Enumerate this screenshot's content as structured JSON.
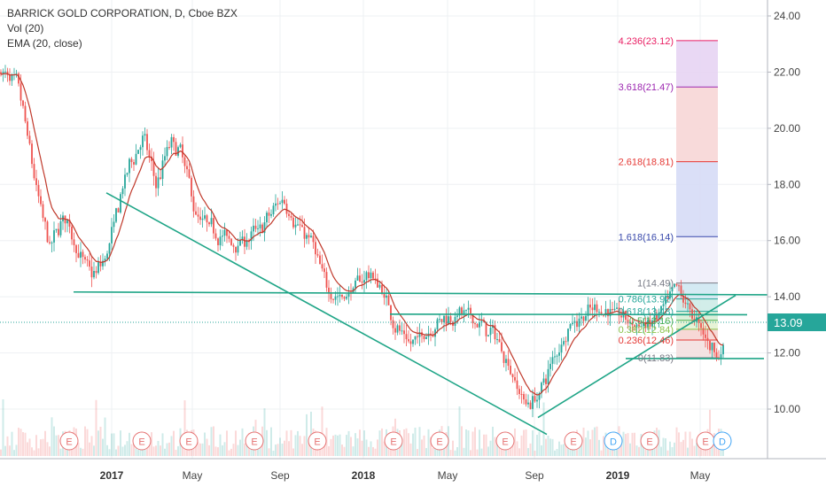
{
  "chart_data": {
    "type": "candlestick",
    "title": "BARRICK GOLD CORPORATION, D, Cboe BZX",
    "indicators": [
      "Vol (20)",
      "EMA (20, close)"
    ],
    "y_ticks": [
      "24.00",
      "22.00",
      "20.00",
      "18.00",
      "16.00",
      "14.00",
      "12.00",
      "10.00"
    ],
    "x_ticks": [
      {
        "label": "2017",
        "bold": true
      },
      {
        "label": "May",
        "bold": false
      },
      {
        "label": "Sep",
        "bold": false
      },
      {
        "label": "2018",
        "bold": true
      },
      {
        "label": "May",
        "bold": false
      },
      {
        "label": "Sep",
        "bold": false
      },
      {
        "label": "2019",
        "bold": true
      },
      {
        "label": "May",
        "bold": false
      }
    ],
    "ylim": [
      8.0,
      24.4
    ],
    "last_price": "13.09",
    "price_path": [
      [
        0,
        22.0
      ],
      [
        20,
        21.4
      ],
      [
        40,
        17.7
      ],
      [
        55,
        15.6
      ],
      [
        70,
        17.0
      ],
      [
        90,
        15.3
      ],
      [
        105,
        14.7
      ],
      [
        120,
        15.6
      ],
      [
        140,
        18.3
      ],
      [
        160,
        19.8
      ],
      [
        175,
        17.8
      ],
      [
        190,
        19.6
      ],
      [
        205,
        19.0
      ],
      [
        220,
        16.8
      ],
      [
        240,
        16.4
      ],
      [
        260,
        15.9
      ],
      [
        280,
        16.1
      ],
      [
        295,
        16.5
      ],
      [
        318,
        17.6
      ],
      [
        335,
        16.4
      ],
      [
        350,
        16.0
      ],
      [
        365,
        14.4
      ],
      [
        385,
        13.9
      ],
      [
        400,
        14.4
      ],
      [
        415,
        14.9
      ],
      [
        430,
        14.2
      ],
      [
        445,
        13.0
      ],
      [
        460,
        12.2
      ],
      [
        480,
        12.8
      ],
      [
        500,
        13.3
      ],
      [
        520,
        13.4
      ],
      [
        540,
        13.0
      ],
      [
        560,
        12.5
      ],
      [
        575,
        11.4
      ],
      [
        590,
        10.2
      ],
      [
        605,
        10.4
      ],
      [
        620,
        11.6
      ],
      [
        640,
        13.0
      ],
      [
        660,
        13.4
      ],
      [
        680,
        13.6
      ],
      [
        700,
        13.3
      ],
      [
        720,
        12.9
      ],
      [
        740,
        13.2
      ],
      [
        763,
        14.3
      ],
      [
        780,
        13.3
      ],
      [
        800,
        12.3
      ],
      [
        810,
        11.9
      ],
      [
        818,
        12.4
      ]
    ],
    "trendlines": [
      {
        "from": [
          120,
          17.7
        ],
        "to": [
          617,
          9.1
        ]
      },
      {
        "from": [
          83,
          14.17
        ],
        "to": [
          870,
          14.07
        ]
      },
      {
        "from": [
          440,
          13.38
        ],
        "to": [
          843,
          13.36
        ]
      },
      {
        "from": [
          607,
          9.7
        ],
        "to": [
          830,
          14.05
        ]
      },
      {
        "from": [
          706,
          11.8
        ],
        "to": [
          862,
          11.8
        ]
      }
    ],
    "fib_levels": [
      {
        "ratio": "0",
        "label": "0(11.83)",
        "price": 11.83,
        "color": "#787b86",
        "fill": "#f3e0e0"
      },
      {
        "ratio": "0.236",
        "label": "0.236(12.46)",
        "price": 12.46,
        "color": "#e53935",
        "fill": "#f6d4d2"
      },
      {
        "ratio": "0.382",
        "label": "0.382(12.84)",
        "price": 12.84,
        "color": "#8bc34a",
        "fill": "#e4f2d2"
      },
      {
        "ratio": "0.5",
        "label": "0.5(13.16)",
        "price": 13.16,
        "color": "#4caf50",
        "fill": "#d6eed6"
      },
      {
        "ratio": "0.618",
        "label": "0.618(13.48)",
        "price": 13.48,
        "color": "#26a69a",
        "fill": "#cdebe7"
      },
      {
        "ratio": "0.786",
        "label": "0.786(13.92)",
        "price": 13.92,
        "color": "#26a69a",
        "fill": "#cfe8f2"
      },
      {
        "ratio": "1",
        "label": "1(14.49)",
        "price": 14.49,
        "color": "#787b86",
        "fill": "#f0eefa"
      },
      {
        "ratio": "1.618",
        "label": "1.618(16.14)",
        "price": 16.14,
        "color": "#3949ab",
        "fill": "#d6dbf6"
      },
      {
        "ratio": "2.618",
        "label": "2.618(18.81)",
        "price": 18.81,
        "color": "#e53935",
        "fill": "#f7d6d6"
      },
      {
        "ratio": "3.618",
        "label": "3.618(21.47)",
        "price": 21.47,
        "color": "#9c27b0",
        "fill": "#e7d4f3"
      },
      {
        "ratio": "4.236",
        "label": "4.236(23.12)",
        "price": 23.12,
        "color": "#e91e63",
        "fill": "#f6d6ea"
      }
    ],
    "events": [
      {
        "type": "E",
        "x": 78
      },
      {
        "type": "E",
        "x": 160
      },
      {
        "type": "E",
        "x": 213
      },
      {
        "type": "E",
        "x": 287
      },
      {
        "type": "E",
        "x": 358
      },
      {
        "type": "E",
        "x": 444
      },
      {
        "type": "E",
        "x": 496
      },
      {
        "type": "E",
        "x": 570
      },
      {
        "type": "E",
        "x": 647
      },
      {
        "type": "D",
        "x": 692
      },
      {
        "type": "E",
        "x": 733
      },
      {
        "type": "E",
        "x": 796
      },
      {
        "type": "D",
        "x": 815
      }
    ]
  },
  "colors": {
    "up": "#26a69a",
    "down": "#ef5350",
    "ema": "#c0392b",
    "trend": "#1fa587",
    "grid": "#eef0f3",
    "price_tag": "#26a69a",
    "earnings": "#e57373",
    "dividend": "#42a5f5"
  }
}
